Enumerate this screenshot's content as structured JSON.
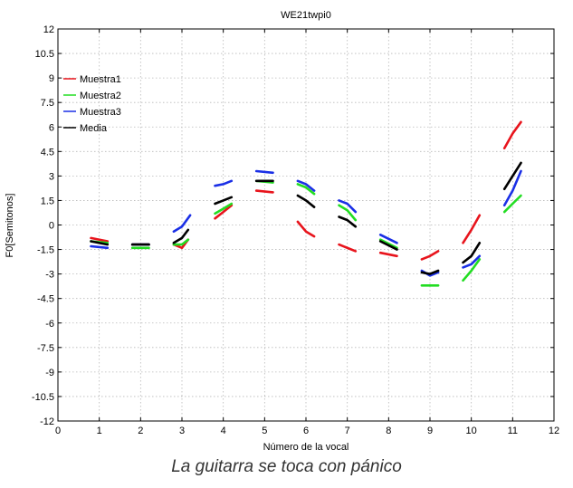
{
  "caption": "La guitarra se toca con pánico",
  "chart_data": {
    "type": "line",
    "title": "WE21twpi0",
    "xlabel": "Número de la vocal",
    "ylabel": "F0[Semitonos]",
    "xlim": [
      0,
      12
    ],
    "ylim": [
      -12,
      12
    ],
    "x_ticks": [
      "0",
      "1",
      "2",
      "3",
      "4",
      "5",
      "6",
      "7",
      "8",
      "9",
      "10",
      "11",
      "12"
    ],
    "y_ticks": [
      "-12",
      "-10.5",
      "-9",
      "-7.5",
      "-6",
      "-4.5",
      "-3",
      "-1.5",
      "0",
      "1.5",
      "3",
      "4.5",
      "6",
      "7.5",
      "9",
      "10.5",
      "12"
    ],
    "grid": true,
    "legend_position": "top-left",
    "series": [
      {
        "name": "Muestra1",
        "color": "#e8141c",
        "segments": [
          [
            [
              0.8,
              -0.8
            ],
            [
              1.2,
              -1.0
            ]
          ],
          [
            [
              1.8,
              -1.2
            ],
            [
              2.2,
              -1.2
            ]
          ],
          [
            [
              2.8,
              -1.2
            ],
            [
              3.0,
              -1.4
            ],
            [
              3.15,
              -0.9
            ]
          ],
          [
            [
              3.8,
              0.4
            ],
            [
              4.0,
              0.8
            ],
            [
              4.2,
              1.2
            ]
          ],
          [
            [
              4.8,
              2.1
            ],
            [
              5.2,
              2.0
            ]
          ],
          [
            [
              5.8,
              0.2
            ],
            [
              6.0,
              -0.4
            ],
            [
              6.2,
              -0.7
            ]
          ],
          [
            [
              6.8,
              -1.2
            ],
            [
              7.2,
              -1.6
            ]
          ],
          [
            [
              7.8,
              -1.7
            ],
            [
              8.2,
              -1.9
            ]
          ],
          [
            [
              8.8,
              -2.1
            ],
            [
              9.0,
              -1.9
            ],
            [
              9.2,
              -1.6
            ]
          ],
          [
            [
              9.8,
              -1.1
            ],
            [
              10.0,
              -0.3
            ],
            [
              10.2,
              0.6
            ]
          ],
          [
            [
              10.8,
              4.7
            ],
            [
              11.0,
              5.6
            ],
            [
              11.2,
              6.3
            ]
          ]
        ]
      },
      {
        "name": "Muestra2",
        "color": "#22dd22",
        "segments": [
          [
            [
              0.8,
              -1.0
            ],
            [
              1.2,
              -1.1
            ]
          ],
          [
            [
              1.8,
              -1.4
            ],
            [
              2.2,
              -1.4
            ]
          ],
          [
            [
              2.8,
              -1.2
            ],
            [
              3.0,
              -1.2
            ],
            [
              3.15,
              -0.9
            ]
          ],
          [
            [
              3.8,
              0.7
            ],
            [
              4.0,
              1.0
            ],
            [
              4.2,
              1.3
            ]
          ],
          [
            [
              4.8,
              2.7
            ],
            [
              5.2,
              2.6
            ]
          ],
          [
            [
              5.8,
              2.5
            ],
            [
              6.0,
              2.3
            ],
            [
              6.2,
              1.9
            ]
          ],
          [
            [
              6.8,
              1.2
            ],
            [
              7.0,
              0.9
            ],
            [
              7.2,
              0.3
            ]
          ],
          [
            [
              7.8,
              -0.9
            ],
            [
              8.2,
              -1.4
            ]
          ],
          [
            [
              8.8,
              -3.7
            ],
            [
              9.2,
              -3.7
            ]
          ],
          [
            [
              9.8,
              -3.4
            ],
            [
              10.0,
              -2.8
            ],
            [
              10.2,
              -2.1
            ]
          ],
          [
            [
              10.8,
              0.8
            ],
            [
              11.0,
              1.3
            ],
            [
              11.2,
              1.8
            ]
          ]
        ]
      },
      {
        "name": "Muestra3",
        "color": "#1a2fe6",
        "segments": [
          [
            [
              0.8,
              -1.3
            ],
            [
              1.2,
              -1.4
            ]
          ],
          [
            [
              1.8,
              -1.2
            ],
            [
              2.2,
              -1.2
            ]
          ],
          [
            [
              2.8,
              -0.4
            ],
            [
              3.0,
              -0.1
            ],
            [
              3.2,
              0.6
            ]
          ],
          [
            [
              3.8,
              2.4
            ],
            [
              4.0,
              2.5
            ],
            [
              4.2,
              2.7
            ]
          ],
          [
            [
              4.8,
              3.3
            ],
            [
              5.2,
              3.2
            ]
          ],
          [
            [
              5.8,
              2.7
            ],
            [
              6.0,
              2.5
            ],
            [
              6.2,
              2.1
            ]
          ],
          [
            [
              6.8,
              1.5
            ],
            [
              7.0,
              1.3
            ],
            [
              7.2,
              0.8
            ]
          ],
          [
            [
              7.8,
              -0.6
            ],
            [
              8.2,
              -1.1
            ]
          ],
          [
            [
              8.8,
              -2.8
            ],
            [
              9.0,
              -3.1
            ],
            [
              9.2,
              -2.9
            ]
          ],
          [
            [
              9.8,
              -2.6
            ],
            [
              10.0,
              -2.4
            ],
            [
              10.2,
              -1.9
            ]
          ],
          [
            [
              10.8,
              1.2
            ],
            [
              11.0,
              2.1
            ],
            [
              11.2,
              3.3
            ]
          ]
        ]
      },
      {
        "name": "Media",
        "color": "#000000",
        "segments": [
          [
            [
              0.8,
              -1.0
            ],
            [
              1.2,
              -1.2
            ]
          ],
          [
            [
              1.8,
              -1.2
            ],
            [
              2.2,
              -1.2
            ]
          ],
          [
            [
              2.8,
              -1.1
            ],
            [
              3.0,
              -0.8
            ],
            [
              3.15,
              -0.3
            ]
          ],
          [
            [
              3.8,
              1.3
            ],
            [
              4.0,
              1.5
            ],
            [
              4.2,
              1.7
            ]
          ],
          [
            [
              4.8,
              2.7
            ],
            [
              5.2,
              2.7
            ]
          ],
          [
            [
              5.8,
              1.8
            ],
            [
              6.0,
              1.5
            ],
            [
              6.2,
              1.1
            ]
          ],
          [
            [
              6.8,
              0.5
            ],
            [
              7.0,
              0.3
            ],
            [
              7.2,
              -0.1
            ]
          ],
          [
            [
              7.8,
              -1.0
            ],
            [
              8.2,
              -1.5
            ]
          ],
          [
            [
              8.8,
              -2.9
            ],
            [
              9.0,
              -3.0
            ],
            [
              9.2,
              -2.8
            ]
          ],
          [
            [
              9.8,
              -2.3
            ],
            [
              10.0,
              -1.9
            ],
            [
              10.2,
              -1.1
            ]
          ],
          [
            [
              10.8,
              2.2
            ],
            [
              11.0,
              3.0
            ],
            [
              11.2,
              3.8
            ]
          ]
        ]
      }
    ]
  }
}
